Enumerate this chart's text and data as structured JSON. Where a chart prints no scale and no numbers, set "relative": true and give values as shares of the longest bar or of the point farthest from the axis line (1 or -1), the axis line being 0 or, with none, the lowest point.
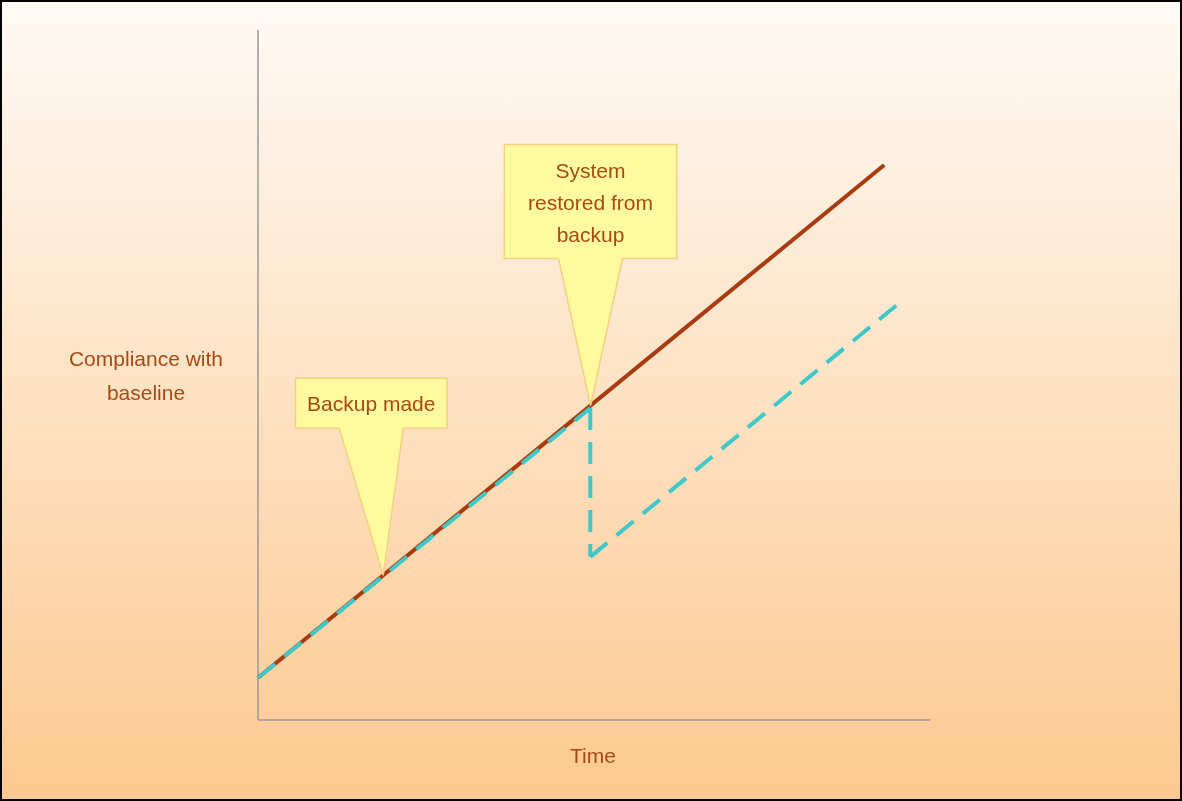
{
  "chart_data": {
    "type": "line",
    "relative": true,
    "xlabel": "Time",
    "ylabel": "Compliance with baseline",
    "line_style": "solid",
    "categories": [
      null,
      null,
      null,
      null,
      null,
      null,
      null,
      null,
      null,
      null,
      null,
      null,
      null,
      null,
      null,
      null,
      null,
      null,
      null,
      null,
      null,
      null,
      null,
      null,
      null,
      null,
      null,
      null,
      null,
      null,
      null,
      null,
      null,
      null,
      null,
      null,
      null,
      null,
      null,
      null,
      null,
      null,
      null,
      null,
      null,
      null,
      null,
      null,
      null,
      null,
      null
    ],
    "series": [
      {
        "color": "#a83c10",
        "values": [
          0.076,
          null,
          null,
          null,
          null,
          null,
          null,
          null,
          null,
          null,
          null,
          null,
          null,
          null,
          null,
          null,
          null,
          null,
          null,
          null,
          null,
          null,
          null,
          null,
          null,
          null,
          null,
          null,
          null,
          null,
          null,
          null,
          null,
          null,
          null,
          null,
          null,
          null,
          null,
          null,
          null,
          null,
          null,
          null,
          null,
          null,
          null,
          null,
          null,
          1,
          null
        ]
      },
      {
        "color": "#40c8c8",
        "line_style": "dashed",
        "values": [
          0.076,
          null,
          null,
          null,
          null,
          null,
          null,
          null,
          null,
          null,
          null,
          null,
          null,
          null,
          null,
          null,
          null,
          null,
          null,
          null,
          null,
          null,
          null,
          null,
          null,
          null,
          0.562,
          null,
          null,
          null,
          null,
          null,
          null,
          null,
          null,
          null,
          null,
          null,
          null,
          null,
          null,
          null,
          null,
          null,
          null,
          null,
          null,
          null,
          null,
          null,
          null
        ]
      },
      {
        "color": "#40c8c8",
        "line_style": "dashed",
        "values": [
          null,
          null,
          null,
          null,
          null,
          null,
          null,
          null,
          null,
          null,
          null,
          null,
          null,
          null,
          null,
          null,
          null,
          null,
          null,
          null,
          null,
          null,
          null,
          null,
          null,
          null,
          0.294,
          null,
          null,
          null,
          null,
          null,
          null,
          null,
          null,
          null,
          null,
          null,
          null,
          null,
          null,
          null,
          null,
          null,
          null,
          null,
          null,
          null,
          null,
          null,
          0.748
        ]
      }
    ],
    "annotations": [
      "Backup made",
      "System restored from backup"
    ]
  }
}
